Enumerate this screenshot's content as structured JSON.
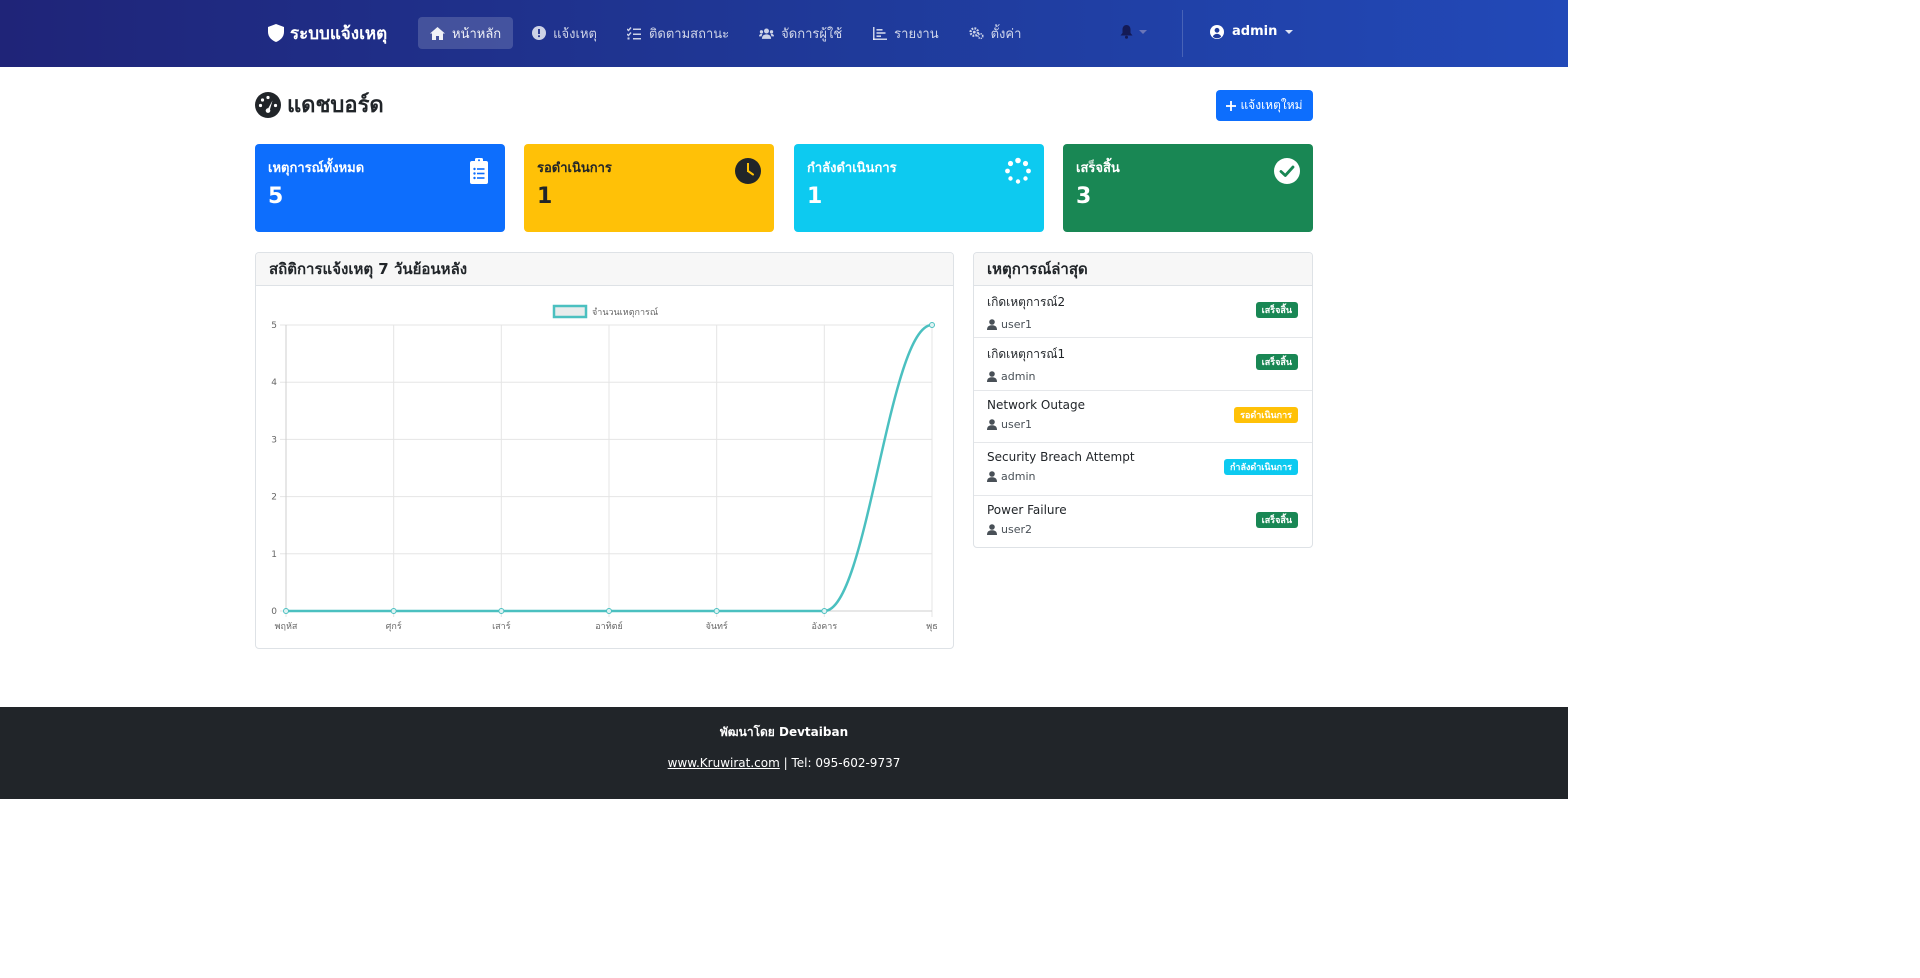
{
  "navbar": {
    "brand": "ระบบแจ้งเหตุ",
    "items": [
      {
        "label": "หน้าหลัก",
        "icon": "home-icon",
        "active": true
      },
      {
        "label": "แจ้งเหตุ",
        "icon": "exclamation-circle-icon",
        "active": false
      },
      {
        "label": "ติดตามสถานะ",
        "icon": "tasks-icon",
        "active": false
      },
      {
        "label": "จัดการผู้ใช้",
        "icon": "users-icon",
        "active": false
      },
      {
        "label": "รายงาน",
        "icon": "chart-icon",
        "active": false
      },
      {
        "label": "ตั้งค่า",
        "icon": "gears-icon",
        "active": false
      }
    ],
    "user": "admin"
  },
  "page": {
    "title": "แดชบอร์ด",
    "new_button": "แจ้งเหตุใหม่"
  },
  "stats": [
    {
      "label": "เหตุการณ์ทั้งหมด",
      "value": "5",
      "icon": "clipboard-list-icon",
      "color": "#0d6efd"
    },
    {
      "label": "รอดำเนินการ",
      "value": "1",
      "icon": "clock-icon",
      "color": "#ffc107"
    },
    {
      "label": "กำลังดำเนินการ",
      "value": "1",
      "icon": "spinner-icon",
      "color": "#0dcaf0"
    },
    {
      "label": "เสร็จสิ้น",
      "value": "3",
      "icon": "check-circle-icon",
      "color": "#198754"
    }
  ],
  "chart_panel": {
    "title": "สถิติการแจ้งเหตุ 7 วันย้อนหลัง"
  },
  "chart_data": {
    "type": "line",
    "categories": [
      "พฤหัส",
      "ศุกร์",
      "เสาร์",
      "อาทิตย์",
      "จันทร์",
      "อังคาร",
      "พุธ"
    ],
    "series": [
      {
        "name": "จำนวนเหตุการณ์",
        "values": [
          0,
          0,
          0,
          0,
          0,
          0,
          5
        ],
        "color": "#4bc0c0"
      }
    ],
    "yticks": [
      "0",
      "1",
      "2",
      "3",
      "4",
      "5"
    ],
    "ylim": [
      0,
      5
    ],
    "grid": true,
    "legend": "top"
  },
  "recent": {
    "title": "เหตุการณ์ล่าสุด",
    "items": [
      {
        "title": "เกิดเหตุการณ์2",
        "user": "user1",
        "status": "เสร็จสิ้น",
        "status_type": "success"
      },
      {
        "title": "เกิดเหตุการณ์1",
        "user": "admin",
        "status": "เสร็จสิ้น",
        "status_type": "success"
      },
      {
        "title": "Network Outage",
        "user": "user1",
        "status": "รอดำเนินการ",
        "status_type": "warning"
      },
      {
        "title": "Security Breach Attempt",
        "user": "admin",
        "status": "กำลังดำเนินการ",
        "status_type": "info"
      },
      {
        "title": "Power Failure",
        "user": "user2",
        "status": "เสร็จสิ้น",
        "status_type": "success"
      }
    ]
  },
  "footer": {
    "credit": "พัฒนาโดย Devtaiban",
    "link": "www.Kruwirat.com",
    "separator": " | ",
    "tel": "Tel: 095-602-9737"
  }
}
